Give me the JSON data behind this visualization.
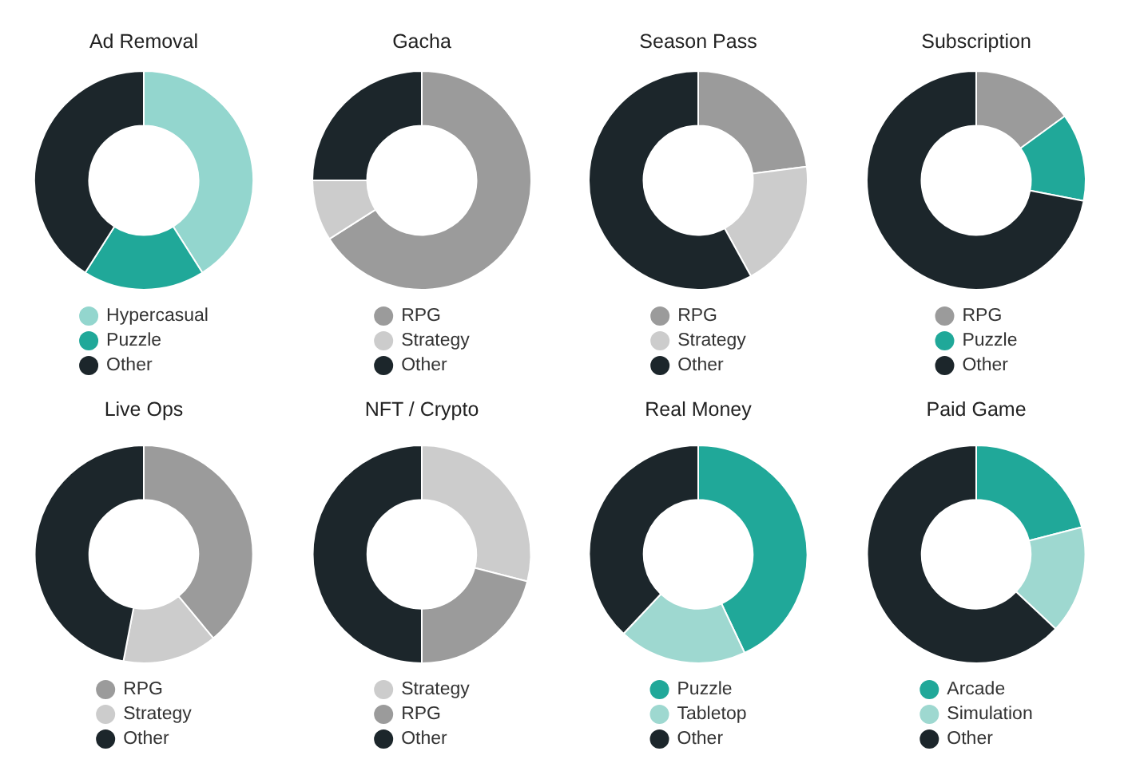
{
  "chart_data": [
    {
      "type": "donut",
      "title": "Ad Removal",
      "categories": [
        "Hypercasual",
        "Puzzle",
        "Other"
      ],
      "values": [
        41,
        18,
        41
      ],
      "colors": [
        "#93d6ce",
        "#20a899",
        "#1c262b"
      ],
      "legend": "bottom"
    },
    {
      "type": "donut",
      "title": "Gacha",
      "categories": [
        "RPG",
        "Strategy",
        "Other"
      ],
      "values": [
        66,
        9,
        25
      ],
      "colors": [
        "#9b9b9b",
        "#cccccc",
        "#1c262b"
      ],
      "legend": "bottom"
    },
    {
      "type": "donut",
      "title": "Season Pass",
      "categories": [
        "RPG",
        "Strategy",
        "Other"
      ],
      "values": [
        23,
        19,
        58
      ],
      "colors": [
        "#9b9b9b",
        "#cccccc",
        "#1c262b"
      ],
      "legend": "bottom"
    },
    {
      "type": "donut",
      "title": "Subscription",
      "categories": [
        "RPG",
        "Puzzle",
        "Other"
      ],
      "values": [
        15,
        13,
        72
      ],
      "colors": [
        "#9b9b9b",
        "#20a899",
        "#1c262b"
      ],
      "legend": "bottom"
    },
    {
      "type": "donut",
      "title": "Live Ops",
      "categories": [
        "RPG",
        "Strategy",
        "Other"
      ],
      "values": [
        39,
        14,
        47
      ],
      "colors": [
        "#9b9b9b",
        "#cccccc",
        "#1c262b"
      ],
      "legend": "bottom"
    },
    {
      "type": "donut",
      "title": "NFT / Crypto",
      "categories": [
        "Strategy",
        "RPG",
        "Other"
      ],
      "values": [
        29,
        21,
        50
      ],
      "colors": [
        "#cccccc",
        "#9b9b9b",
        "#1c262b"
      ],
      "legend": "bottom"
    },
    {
      "type": "donut",
      "title": "Real Money",
      "categories": [
        "Puzzle",
        "Tabletop",
        "Other"
      ],
      "values": [
        43,
        19,
        38
      ],
      "colors": [
        "#20a899",
        "#9ed8d0",
        "#1c262b"
      ],
      "legend": "bottom"
    },
    {
      "type": "donut",
      "title": "Paid Game",
      "categories": [
        "Arcade",
        "Simulation",
        "Other"
      ],
      "values": [
        21,
        16,
        63
      ],
      "colors": [
        "#20a899",
        "#9ed8d0",
        "#1c262b"
      ],
      "legend": "bottom"
    }
  ]
}
